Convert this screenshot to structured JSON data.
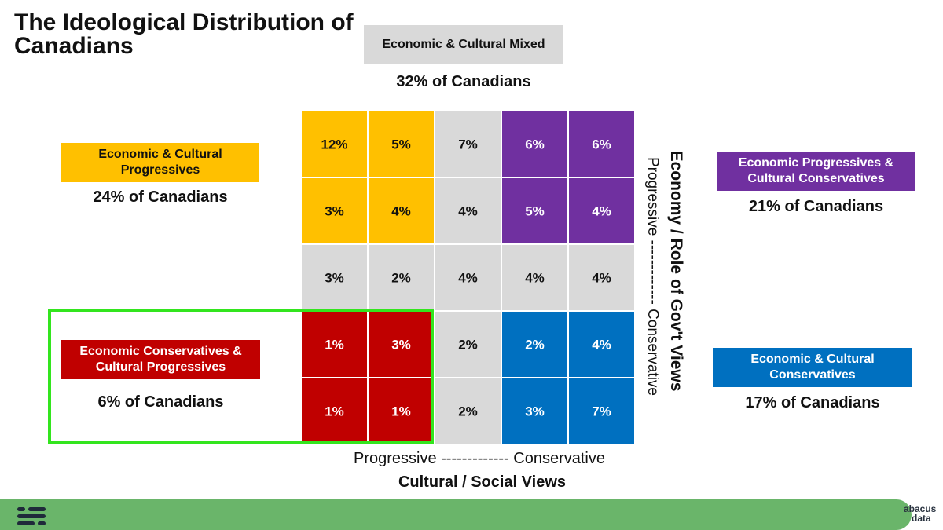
{
  "title": "The Ideological Distribution of Canadians",
  "segments": {
    "mixed": {
      "label": "Economic & Cultural Mixed",
      "share": "32% of Canadians",
      "color": "#d9d9d9"
    },
    "progressives": {
      "label": "Economic & Cultural Progressives",
      "share": "24% of Canadians",
      "color": "#ffc000"
    },
    "econ_prog_cult_cons": {
      "label": "Economic Progressives & Cultural Conservatives",
      "share": "21% of Canadians",
      "color": "#7030a0"
    },
    "econ_cons_cult_prog": {
      "label": "Economic Conservatives & Cultural Progressives",
      "share": "6% of Canadians",
      "color": "#c00000"
    },
    "conservatives": {
      "label": "Economic & Cultural Conservatives",
      "share": "17% of Canadians",
      "color": "#0070c0"
    }
  },
  "chart_data": {
    "type": "heatmap",
    "title": "The Ideological Distribution of Canadians",
    "xlabel": "Cultural / Social Views",
    "x_range_label": "Progressive ------------- Conservative",
    "ylabel": "Economy / Role of Gov't Views",
    "y_range_label": "Progressive ------------- Conservative",
    "rows": [
      [
        {
          "value": 12,
          "label": "12%",
          "group": "progressives"
        },
        {
          "value": 5,
          "label": "5%",
          "group": "progressives"
        },
        {
          "value": 7,
          "label": "7%",
          "group": "mixed"
        },
        {
          "value": 6,
          "label": "6%",
          "group": "econ_prog_cult_cons"
        },
        {
          "value": 6,
          "label": "6%",
          "group": "econ_prog_cult_cons"
        }
      ],
      [
        {
          "value": 3,
          "label": "3%",
          "group": "progressives"
        },
        {
          "value": 4,
          "label": "4%",
          "group": "progressives"
        },
        {
          "value": 4,
          "label": "4%",
          "group": "mixed"
        },
        {
          "value": 5,
          "label": "5%",
          "group": "econ_prog_cult_cons"
        },
        {
          "value": 4,
          "label": "4%",
          "group": "econ_prog_cult_cons"
        }
      ],
      [
        {
          "value": 3,
          "label": "3%",
          "group": "mixed"
        },
        {
          "value": 2,
          "label": "2%",
          "group": "mixed"
        },
        {
          "value": 4,
          "label": "4%",
          "group": "mixed"
        },
        {
          "value": 4,
          "label": "4%",
          "group": "mixed"
        },
        {
          "value": 4,
          "label": "4%",
          "group": "mixed"
        }
      ],
      [
        {
          "value": 1,
          "label": "1%",
          "group": "econ_cons_cult_prog"
        },
        {
          "value": 3,
          "label": "3%",
          "group": "econ_cons_cult_prog"
        },
        {
          "value": 2,
          "label": "2%",
          "group": "mixed"
        },
        {
          "value": 2,
          "label": "2%",
          "group": "conservatives"
        },
        {
          "value": 4,
          "label": "4%",
          "group": "conservatives"
        }
      ],
      [
        {
          "value": 1,
          "label": "1%",
          "group": "econ_cons_cult_prog"
        },
        {
          "value": 1,
          "label": "1%",
          "group": "econ_cons_cult_prog"
        },
        {
          "value": 2,
          "label": "2%",
          "group": "mixed"
        },
        {
          "value": 3,
          "label": "3%",
          "group": "conservatives"
        },
        {
          "value": 7,
          "label": "7%",
          "group": "conservatives"
        }
      ]
    ]
  },
  "footer": {
    "brand_line1": "abacus",
    "brand_line2": "data"
  }
}
